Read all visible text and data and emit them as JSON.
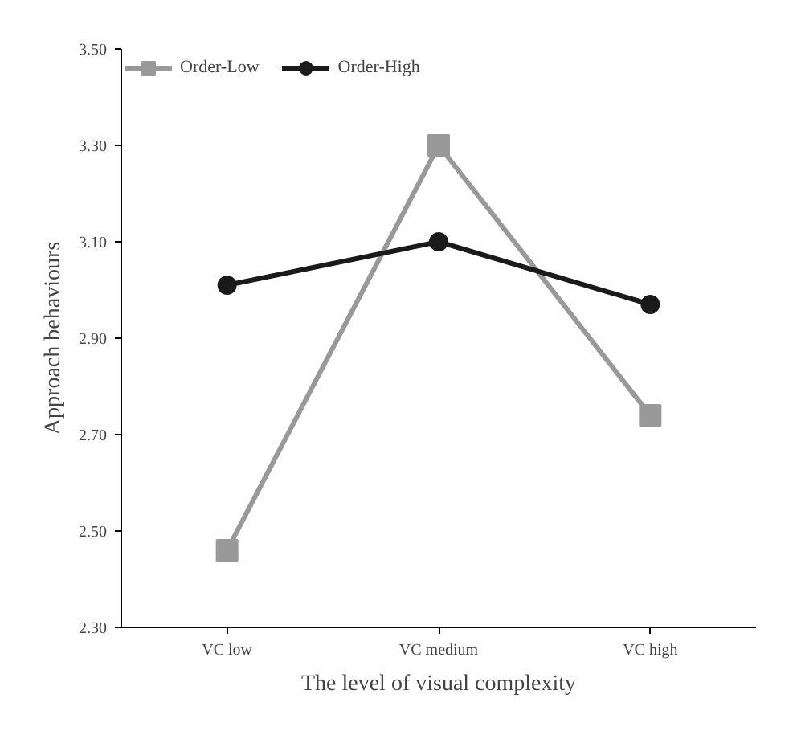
{
  "chart_data": {
    "type": "line",
    "xlabel": "The level of visual complexity",
    "ylabel": "Approach behaviours",
    "categories": [
      "VC low",
      "VC medium",
      "VC high"
    ],
    "series": [
      {
        "name": "Order-Low",
        "color": "#999999",
        "marker": "square",
        "values": [
          2.46,
          3.3,
          2.74
        ]
      },
      {
        "name": "Order-High",
        "color": "#1a1a1a",
        "marker": "circle",
        "values": [
          3.01,
          3.1,
          2.97
        ]
      }
    ],
    "ylim": [
      2.3,
      3.5
    ],
    "yticks": [
      {
        "value": 2.3,
        "label": "2.30"
      },
      {
        "value": 2.5,
        "label": "2.50"
      },
      {
        "value": 2.7,
        "label": "2.70"
      },
      {
        "value": 2.9,
        "label": "2.90"
      },
      {
        "value": 3.1,
        "label": "3.10"
      },
      {
        "value": 3.3,
        "label": "3.30"
      },
      {
        "value": 3.5,
        "label": "3.50"
      }
    ],
    "grid": false,
    "legend": "top left",
    "line_style": "solid"
  }
}
